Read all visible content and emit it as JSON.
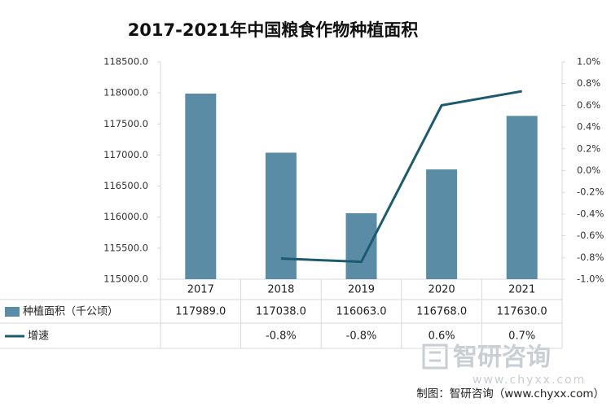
{
  "chart_data": {
    "type": "bar",
    "title": "2017-2021年中国粮食作物种植面积",
    "categories": [
      "2017",
      "2018",
      "2019",
      "2020",
      "2021"
    ],
    "series": [
      {
        "name": "种植面积（千公顷）",
        "color": "#5b8ca5",
        "type": "bar",
        "values": [
          117989,
          117038,
          116063,
          116768,
          117630
        ],
        "value_labels": [
          "117989.0",
          "117038.0",
          "116063.0",
          "116768.0",
          "117630.0"
        ]
      },
      {
        "name": "增速",
        "color": "#1c5a70",
        "type": "line",
        "axis": "y2",
        "values": [
          null,
          -0.81,
          -0.84,
          0.6,
          0.73
        ],
        "value_labels": [
          null,
          "-0.8%",
          "-0.8%",
          "0.6%",
          "0.7%"
        ]
      }
    ],
    "ylim": [
      115000,
      118500
    ],
    "yticks": [
      {
        "value": 115000,
        "label": "115000.0"
      },
      {
        "value": 115500,
        "label": "115500.0"
      },
      {
        "value": 116000,
        "label": "116000.0"
      },
      {
        "value": 116500,
        "label": "116500.0"
      },
      {
        "value": 117000,
        "label": "117000.0"
      },
      {
        "value": 117500,
        "label": "117500.0"
      },
      {
        "value": 118000,
        "label": "118000.0"
      },
      {
        "value": 118500,
        "label": "118500.0"
      }
    ],
    "y2lim": [
      -1.0,
      1.0
    ],
    "y2ticks": [
      {
        "value": -1.0,
        "label": "-1.0%"
      },
      {
        "value": -0.8,
        "label": "-0.8%"
      },
      {
        "value": -0.6,
        "label": "-0.6%"
      },
      {
        "value": -0.4,
        "label": "-0.4%"
      },
      {
        "value": -0.2,
        "label": "-0.2%"
      },
      {
        "value": 0,
        "label": "0.0%"
      },
      {
        "value": 0.2,
        "label": "0.2%"
      },
      {
        "value": 0.4,
        "label": "0.4%"
      },
      {
        "value": 0.6,
        "label": "0.6%"
      },
      {
        "value": 0.8,
        "label": "0.8%"
      },
      {
        "value": 1.0,
        "label": "1.0%"
      }
    ],
    "grid": false,
    "watermark": {
      "name": "智研咨询",
      "url": "www.chyxx.com"
    },
    "source": "制图：智研咨询（www.chyxx.com）"
  }
}
